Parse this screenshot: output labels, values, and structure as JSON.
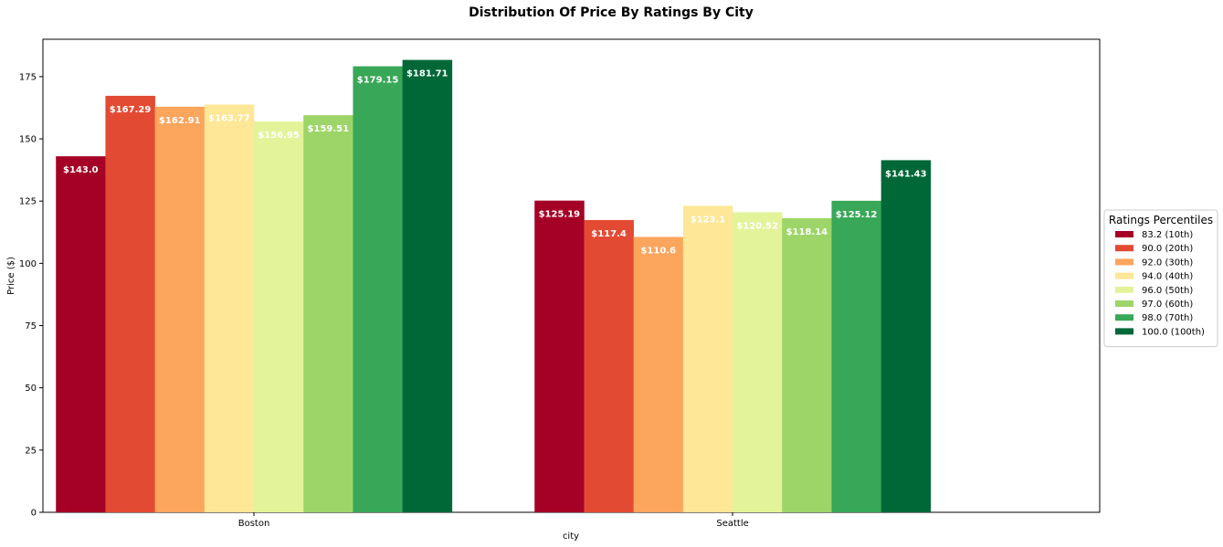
{
  "chart_data": {
    "type": "bar",
    "title": "Distribution Of Price By Ratings By City",
    "xlabel": "city",
    "ylabel": "Price ($)",
    "ylim": [
      0,
      190
    ],
    "yticks": [
      0,
      25,
      50,
      75,
      100,
      125,
      150,
      175
    ],
    "grid": false,
    "categories": [
      "Boston",
      "Seattle"
    ],
    "legend": {
      "title": "Ratings Percentiles",
      "placement": "right"
    },
    "series": [
      {
        "name": "83.2 (10th)",
        "color": "#a50026",
        "values": [
          143.0,
          125.19
        ],
        "labels": [
          "$143.0",
          "$125.19"
        ]
      },
      {
        "name": "90.0 (20th)",
        "color": "#e34a33",
        "values": [
          167.29,
          117.4
        ],
        "labels": [
          "$167.29",
          "$117.4"
        ]
      },
      {
        "name": "92.0 (30th)",
        "color": "#fca55d",
        "values": [
          162.91,
          110.6
        ],
        "labels": [
          "$162.91",
          "$110.6"
        ]
      },
      {
        "name": "94.0 (40th)",
        "color": "#fee796",
        "values": [
          163.77,
          123.1
        ],
        "labels": [
          "$163.77",
          "$123.1"
        ]
      },
      {
        "name": "96.0 (50th)",
        "color": "#e3f399",
        "values": [
          156.95,
          120.52
        ],
        "labels": [
          "$156.95",
          "$120.52"
        ]
      },
      {
        "name": "97.0 (60th)",
        "color": "#9dd569",
        "values": [
          159.51,
          118.14
        ],
        "labels": [
          "$159.51",
          "$118.14"
        ]
      },
      {
        "name": "98.0 (70th)",
        "color": "#39a758",
        "values": [
          179.15,
          125.12
        ],
        "labels": [
          "$179.15",
          "$125.12"
        ]
      },
      {
        "name": "100.0 (100th)",
        "color": "#006837",
        "values": [
          181.71,
          141.43
        ],
        "labels": [
          "$181.71",
          "$141.43"
        ]
      }
    ]
  }
}
